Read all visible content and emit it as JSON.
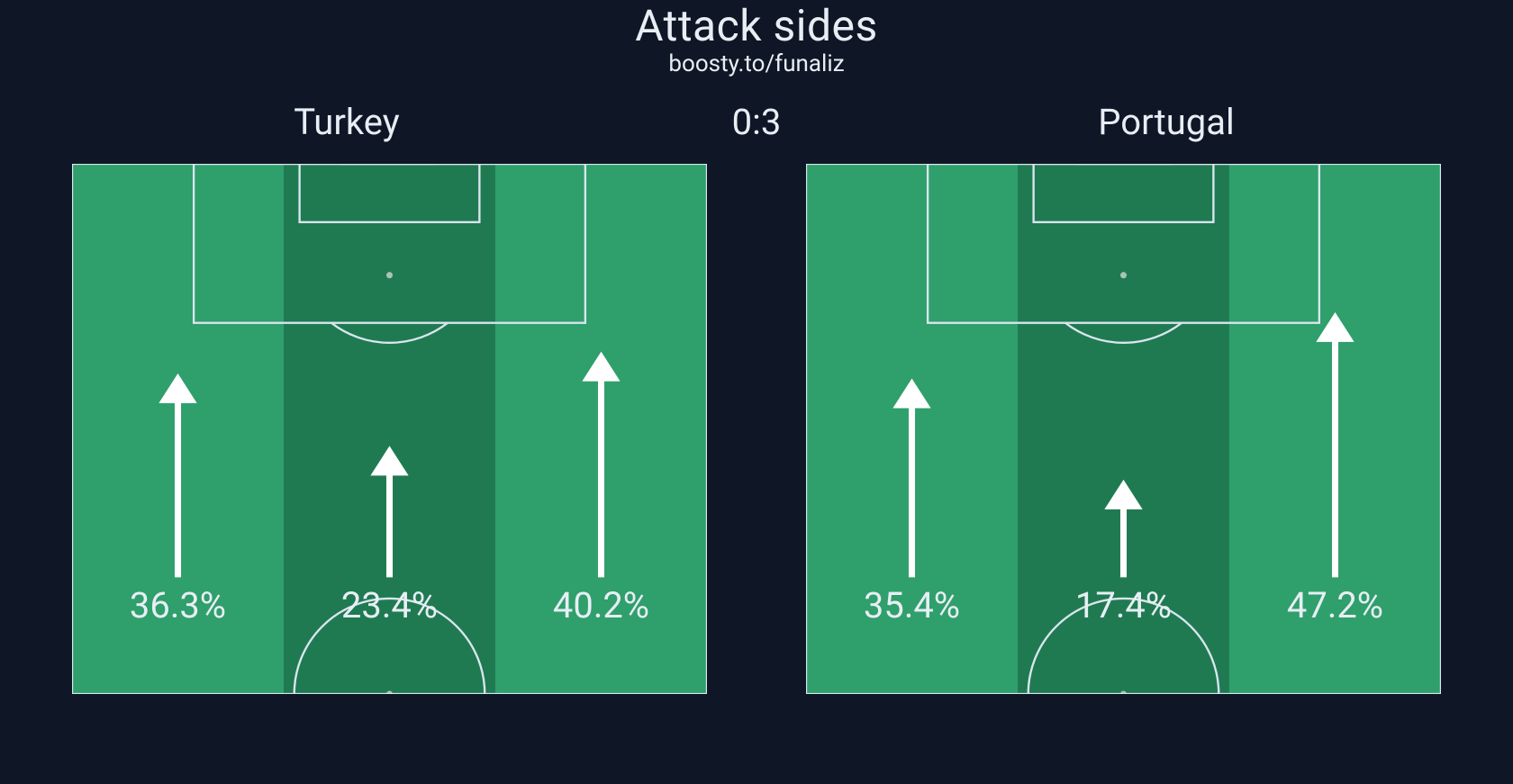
{
  "title": "Attack sides",
  "subtitle": "boosty.to/funaliz",
  "score": "0:3",
  "text_color": "#e8eef4",
  "background_color": "#0f1626",
  "title_fontsize": 48,
  "subtitle_fontsize": 26,
  "team_label_fontsize": 40,
  "pct_label_fontsize": 34,
  "pitch": {
    "field_color": "#1f7a52",
    "zone_highlight_color": "#2f9f6c",
    "line_color": "#d9e6ee",
    "line_width": 2,
    "arrow_color": "#ffffff",
    "arrow_stroke_width": 6,
    "penalty_spot_color": "#a9c3b4",
    "max_arrow_length_pct": 50
  },
  "teams": [
    {
      "name": "Turkey",
      "zones": {
        "left": {
          "pct": 36.3,
          "label": "36.3%"
        },
        "center": {
          "pct": 23.4,
          "label": "23.4%"
        },
        "right": {
          "pct": 40.2,
          "label": "40.2%"
        }
      }
    },
    {
      "name": "Portugal",
      "zones": {
        "left": {
          "pct": 35.4,
          "label": "35.4%"
        },
        "center": {
          "pct": 17.4,
          "label": "17.4%"
        },
        "right": {
          "pct": 47.2,
          "label": "47.2%"
        }
      }
    }
  ]
}
